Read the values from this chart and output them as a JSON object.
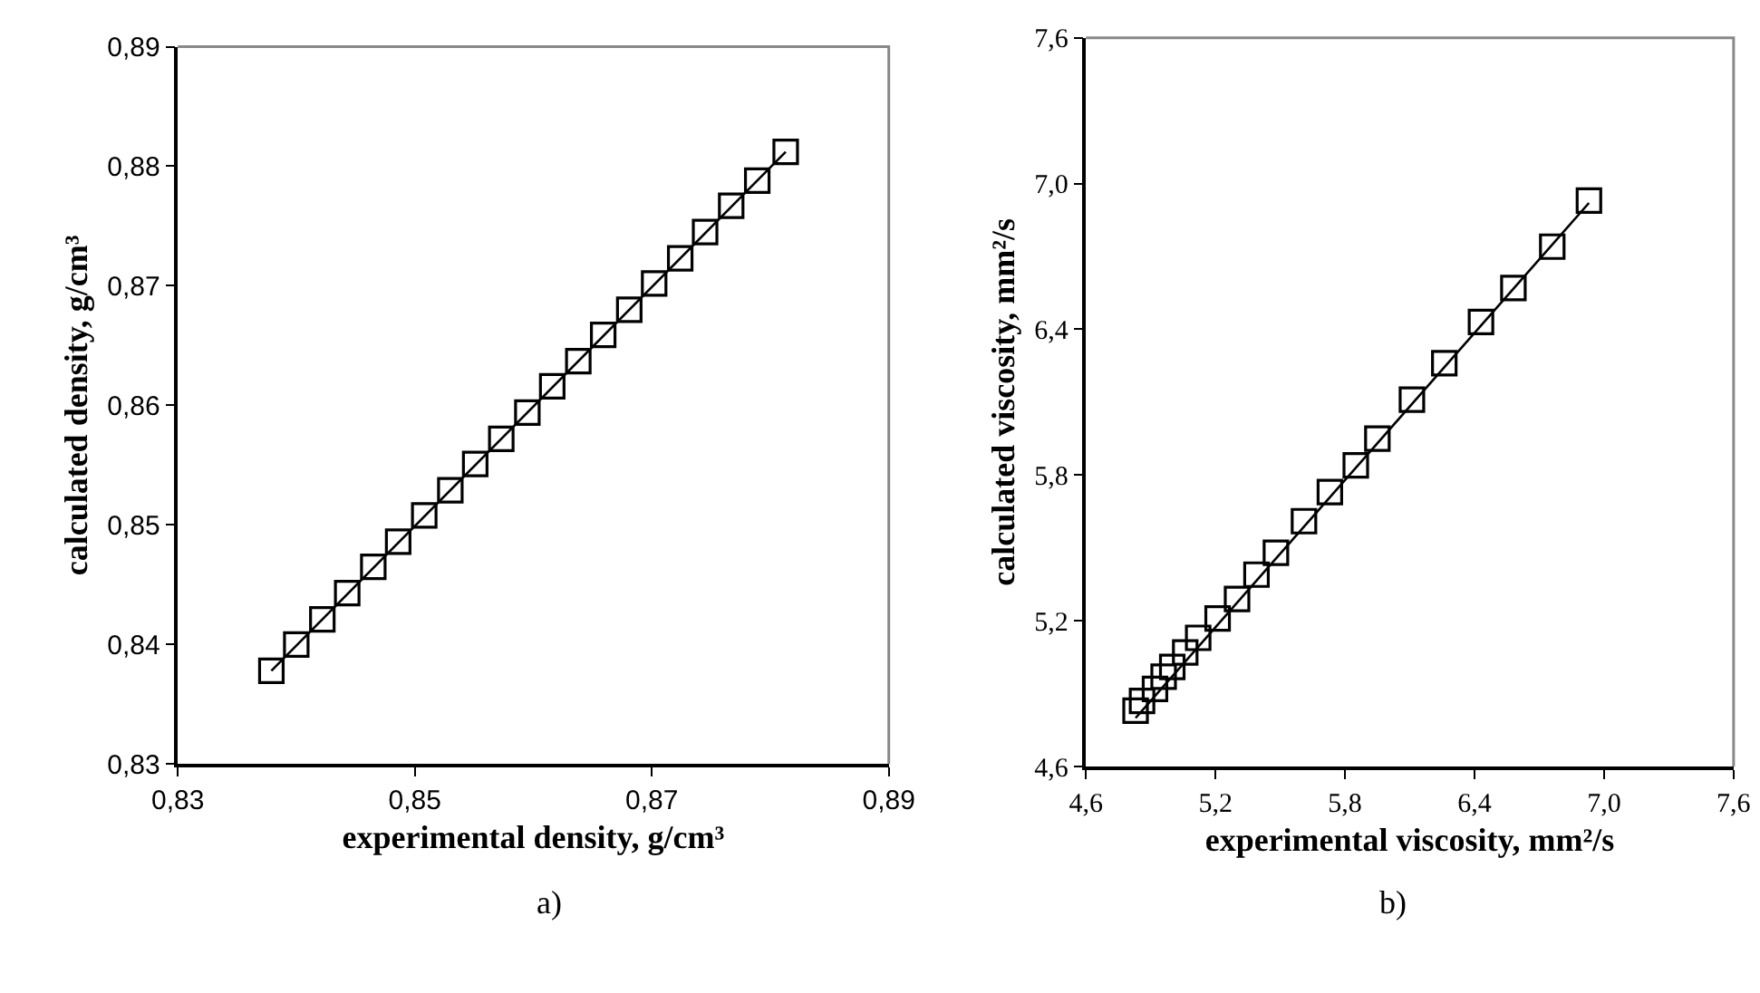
{
  "chart_data": [
    {
      "type": "scatter",
      "xlabel": "experimental density, g/cm³",
      "ylabel": "calculated density, g/cm³",
      "xlim": [
        0.83,
        0.89
      ],
      "ylim": [
        0.83,
        0.89
      ],
      "xticks": [
        {
          "value": 0.83,
          "label": "0,83"
        },
        {
          "value": 0.85,
          "label": "0,85"
        },
        {
          "value": 0.87,
          "label": "0,87"
        },
        {
          "value": 0.89,
          "label": "0,89"
        }
      ],
      "yticks": [
        {
          "value": 0.83,
          "label": "0,83"
        },
        {
          "value": 0.84,
          "label": "0,84"
        },
        {
          "value": 0.85,
          "label": "0,85"
        },
        {
          "value": 0.86,
          "label": "0,86"
        },
        {
          "value": 0.87,
          "label": "0,87"
        },
        {
          "value": 0.88,
          "label": "0,88"
        },
        {
          "value": 0.89,
          "label": "0,89"
        }
      ],
      "grid": false,
      "annotations": [
        "a)"
      ],
      "series": [
        {
          "marker": "square",
          "color": "#000000",
          "x": [
            0.8379,
            0.84,
            0.8422,
            0.8443,
            0.8465,
            0.8486,
            0.8508,
            0.853,
            0.8551,
            0.8573,
            0.8595,
            0.8616,
            0.8638,
            0.8659,
            0.8681,
            0.8702,
            0.8724,
            0.8745,
            0.8767,
            0.8789,
            0.8813
          ],
          "values": [
            0.8378,
            0.84,
            0.8421,
            0.8443,
            0.8465,
            0.8486,
            0.8508,
            0.8529,
            0.8551,
            0.8572,
            0.8594,
            0.8616,
            0.8637,
            0.8659,
            0.868,
            0.8702,
            0.8723,
            0.8745,
            0.8767,
            0.8788,
            0.8812
          ]
        },
        {
          "type": "line",
          "marker": "none",
          "color": "#000000",
          "x": [
            0.8379,
            0.8813
          ],
          "values": [
            0.8378,
            0.8812
          ]
        }
      ]
    },
    {
      "type": "scatter",
      "xlabel": "experimental viscosity, mm²/s",
      "ylabel": "calculated viscosity, mm²/s",
      "xlim": [
        4.6,
        7.6
      ],
      "ylim": [
        4.6,
        7.6
      ],
      "xticks": [
        {
          "value": 4.6,
          "label": "4,6"
        },
        {
          "value": 5.2,
          "label": "5,2"
        },
        {
          "value": 5.8,
          "label": "5,8"
        },
        {
          "value": 6.4,
          "label": "6,4"
        },
        {
          "value": 7.0,
          "label": "7,0"
        },
        {
          "value": 7.6,
          "label": "7,6"
        }
      ],
      "yticks": [
        {
          "value": 4.6,
          "label": "4,6"
        },
        {
          "value": 5.2,
          "label": "5,2"
        },
        {
          "value": 5.8,
          "label": "5,8"
        },
        {
          "value": 6.4,
          "label": "6,4"
        },
        {
          "value": 7.0,
          "label": "7,0"
        },
        {
          "value": 7.6,
          "label": "7,6"
        }
      ],
      "grid": false,
      "annotations": [
        "b)"
      ],
      "series": [
        {
          "marker": "square",
          "color": "#000000",
          "x": [
            4.83,
            4.86,
            4.92,
            4.96,
            5.0,
            5.06,
            5.12,
            5.21,
            5.3,
            5.39,
            5.48,
            5.61,
            5.73,
            5.85,
            5.95,
            6.11,
            6.26,
            6.43,
            6.58,
            6.76,
            6.93
          ],
          "values": [
            4.83,
            4.87,
            4.92,
            4.97,
            5.01,
            5.07,
            5.13,
            5.21,
            5.29,
            5.39,
            5.48,
            5.61,
            5.73,
            5.84,
            5.95,
            6.11,
            6.26,
            6.43,
            6.57,
            6.74,
            6.93
          ]
        },
        {
          "type": "line",
          "marker": "none",
          "color": "#000000",
          "x": [
            4.83,
            6.93
          ],
          "values": [
            4.8,
            6.92
          ]
        }
      ]
    }
  ]
}
